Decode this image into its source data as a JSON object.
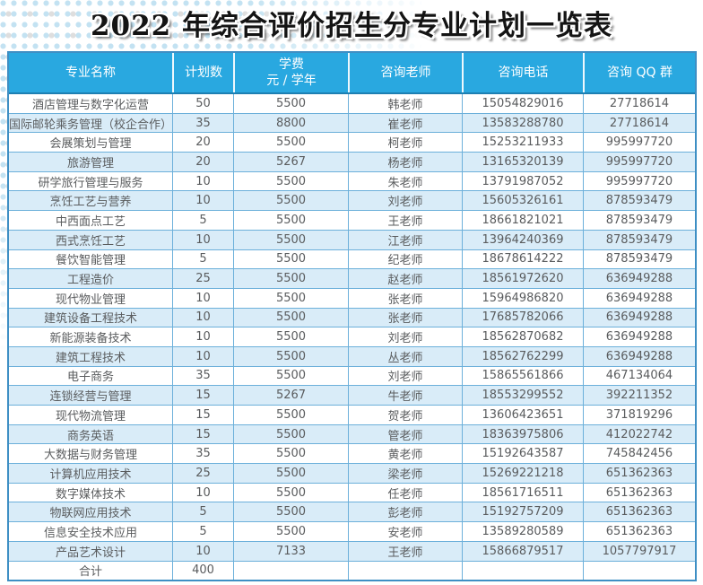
{
  "title": "2022 年综合评价招生分专业计划一览表",
  "colors": {
    "header_bg": "#29a8e0",
    "header_text": "#ffffff",
    "row_alt_bg": "#d9ecf8",
    "row_bg": "#ffffff",
    "cell_border": "#6cb0da",
    "outer_border": "#3e8fc4",
    "cell_text": "#5a5c5e"
  },
  "table": {
    "columns": {
      "major": "专业名称",
      "plan": "计划数",
      "tuition_line1": "学费",
      "tuition_line2": "元 / 学年",
      "teacher": "咨询老师",
      "phone": "咨询电话",
      "qq": "咨询 QQ 群"
    },
    "rows": [
      {
        "major": "酒店管理与数字化运营",
        "plan": "50",
        "tuition": "5500",
        "teacher": "韩老师",
        "phone": "15054829016",
        "qq": "27718614"
      },
      {
        "major": "国际邮轮乘务管理（校企合作）",
        "plan": "35",
        "tuition": "8800",
        "teacher": "崔老师",
        "phone": "13583288780",
        "qq": "27718614"
      },
      {
        "major": "会展策划与管理",
        "plan": "20",
        "tuition": "5500",
        "teacher": "柯老师",
        "phone": "15253211933",
        "qq": "995997720"
      },
      {
        "major": "旅游管理",
        "plan": "20",
        "tuition": "5267",
        "teacher": "杨老师",
        "phone": "13165320139",
        "qq": "995997720"
      },
      {
        "major": "研学旅行管理与服务",
        "plan": "10",
        "tuition": "5500",
        "teacher": "朱老师",
        "phone": "13791987052",
        "qq": "995997720"
      },
      {
        "major": "烹饪工艺与营养",
        "plan": "10",
        "tuition": "5500",
        "teacher": "刘老师",
        "phone": "15605326161",
        "qq": "878593479"
      },
      {
        "major": "中西面点工艺",
        "plan": "5",
        "tuition": "5500",
        "teacher": "王老师",
        "phone": "18661821021",
        "qq": "878593479"
      },
      {
        "major": "西式烹饪工艺",
        "plan": "10",
        "tuition": "5500",
        "teacher": "江老师",
        "phone": "13964240369",
        "qq": "878593479"
      },
      {
        "major": "餐饮智能管理",
        "plan": "5",
        "tuition": "5500",
        "teacher": "纪老师",
        "phone": "18678614222",
        "qq": "878593479"
      },
      {
        "major": "工程造价",
        "plan": "25",
        "tuition": "5500",
        "teacher": "赵老师",
        "phone": "18561972620",
        "qq": "636949288"
      },
      {
        "major": "现代物业管理",
        "plan": "10",
        "tuition": "5500",
        "teacher": "张老师",
        "phone": "15964986820",
        "qq": "636949288"
      },
      {
        "major": "建筑设备工程技术",
        "plan": "10",
        "tuition": "5500",
        "teacher": "张老师",
        "phone": "17685782066",
        "qq": "636949288"
      },
      {
        "major": "新能源装备技术",
        "plan": "10",
        "tuition": "5500",
        "teacher": "刘老师",
        "phone": "18562870682",
        "qq": "636949288"
      },
      {
        "major": "建筑工程技术",
        "plan": "10",
        "tuition": "5500",
        "teacher": "丛老师",
        "phone": "18562762299",
        "qq": "636949288"
      },
      {
        "major": "电子商务",
        "plan": "35",
        "tuition": "5500",
        "teacher": "刘老师",
        "phone": "15865561866",
        "qq": "467134064"
      },
      {
        "major": "连锁经营与管理",
        "plan": "15",
        "tuition": "5267",
        "teacher": "牛老师",
        "phone": "18553299552",
        "qq": "392211352"
      },
      {
        "major": "现代物流管理",
        "plan": "15",
        "tuition": "5500",
        "teacher": "贺老师",
        "phone": "13606423651",
        "qq": "371819296"
      },
      {
        "major": "商务英语",
        "plan": "15",
        "tuition": "5500",
        "teacher": "管老师",
        "phone": "18363975806",
        "qq": "412022742"
      },
      {
        "major": "大数据与财务管理",
        "plan": "35",
        "tuition": "5500",
        "teacher": "黄老师",
        "phone": "15192643587",
        "qq": "745842456"
      },
      {
        "major": "计算机应用技术",
        "plan": "25",
        "tuition": "5500",
        "teacher": "梁老师",
        "phone": "15269221218",
        "qq": "651362363"
      },
      {
        "major": "数字媒体技术",
        "plan": "10",
        "tuition": "5500",
        "teacher": "任老师",
        "phone": "18561716511",
        "qq": "651362363"
      },
      {
        "major": "物联网应用技术",
        "plan": "5",
        "tuition": "5500",
        "teacher": "彭老师",
        "phone": "15192757209",
        "qq": "651362363"
      },
      {
        "major": "信息安全技术应用",
        "plan": "5",
        "tuition": "5500",
        "teacher": "安老师",
        "phone": "13589280589",
        "qq": "651362363"
      },
      {
        "major": "产品艺术设计",
        "plan": "10",
        "tuition": "7133",
        "teacher": "王老师",
        "phone": "15866879517",
        "qq": "1057797917"
      }
    ],
    "total_row": {
      "label": "合计",
      "plan": "400"
    }
  }
}
